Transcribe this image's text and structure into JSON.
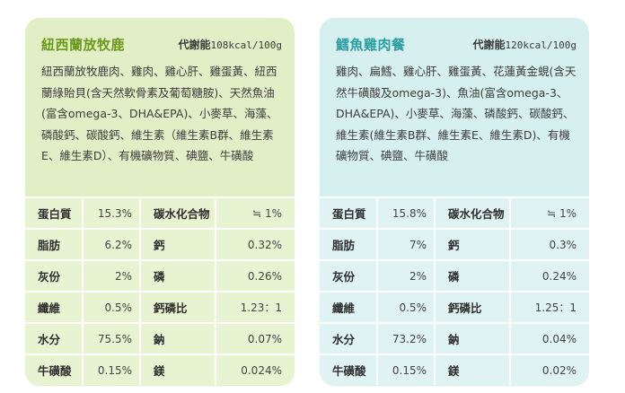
{
  "cards": [
    {
      "title": "紐西蘭放牧鹿",
      "energy_label": "代謝能",
      "energy_value": "108kcal/100g",
      "ingredients": "紐西蘭放牧鹿肉、雞肉、雞心肝、雞蛋黃、紐西蘭綠貽貝(含天然軟骨素及葡萄糖胺)、天然魚油(富含omega-3、DHA&EPA)、小麥草、海藻、磷酸鈣、碳酸鈣、維生素（維生素B群、維生素E、維生素D）、有機礦物質、碘鹽、牛磺酸",
      "rows": [
        {
          "n1": "蛋白質",
          "v1": "15.3%",
          "n2": "碳水化合物",
          "v2": "≒ 1%"
        },
        {
          "n1": "脂肪",
          "v1": "6.2%",
          "n2": "鈣",
          "v2": "0.32%"
        },
        {
          "n1": "灰份",
          "v1": "2%",
          "n2": "磷",
          "v2": "0.26%"
        },
        {
          "n1": "纖維",
          "v1": "0.5%",
          "n2": "鈣磷比",
          "v2": "1.23：1"
        },
        {
          "n1": "水分",
          "v1": "75.5%",
          "n2": "鈉",
          "v2": "0.07%"
        },
        {
          "n1": "牛磺酸",
          "v1": "0.15%",
          "n2": "鎂",
          "v2": "0.024%"
        }
      ]
    },
    {
      "title": "鱈魚雞肉餐",
      "energy_label": "代謝能",
      "energy_value": "120kcal/100g",
      "ingredients": "雞肉、扁鱈、雞心肝、雞蛋黃、花蓮黃金蜆(含天然牛磺酸及omega-3)、魚油(富含omega-3、DHA&EPA)、小麥草、海藻、磷酸鈣、碳酸鈣、維生素(維生素B群、維生素E、維生素D)、有機礦物質、碘鹽、牛磺酸",
      "rows": [
        {
          "n1": "蛋白質",
          "v1": "15.8%",
          "n2": "碳水化合物",
          "v2": "≒ 1%"
        },
        {
          "n1": "脂肪",
          "v1": "7%",
          "n2": "鈣",
          "v2": "0.3%"
        },
        {
          "n1": "灰份",
          "v1": "2%",
          "n2": "磷",
          "v2": "0.24%"
        },
        {
          "n1": "纖維",
          "v1": "0.5%",
          "n2": "鈣磷比",
          "v2": "1.25：1"
        },
        {
          "n1": "水分",
          "v1": "73.2%",
          "n2": "鈉",
          "v2": "0.04%"
        },
        {
          "n1": "牛磺酸",
          "v1": "0.15%",
          "n2": "鎂",
          "v2": "0.02%"
        }
      ]
    }
  ],
  "colors": {
    "left_card": "#e2efc6",
    "right_card": "#d6efef",
    "left_title": "#6a9a1a",
    "right_title": "#2a9ea3"
  }
}
